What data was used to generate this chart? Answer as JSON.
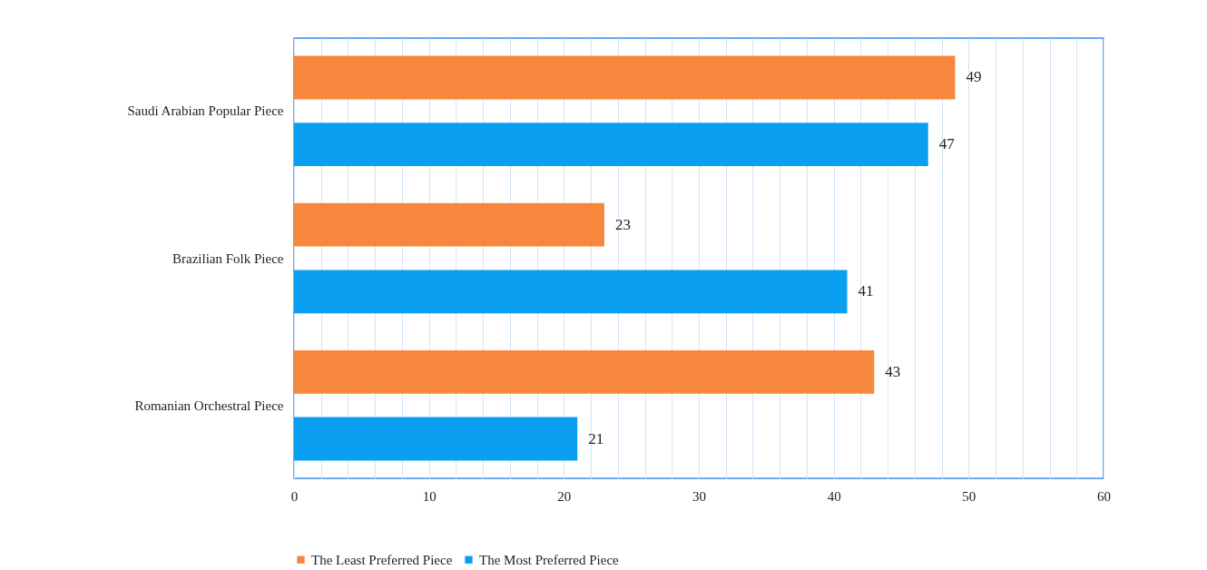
{
  "chart_data": {
    "type": "bar",
    "orientation": "horizontal",
    "categories": [
      "Saudi Arabian Popular Piece",
      "Brazilian Folk Piece",
      "Romanian Orchestral Piece"
    ],
    "series": [
      {
        "name": "The Least Preferred Piece",
        "color": "#f7873c",
        "values": [
          49,
          23,
          43
        ]
      },
      {
        "name": "The Most Preferred Piece",
        "color": "#0a9ef0",
        "values": [
          47,
          41,
          21
        ]
      }
    ],
    "xlim": [
      0,
      60
    ],
    "xticks": [
      0,
      {
        "value": 2,
        "label": null
      },
      {
        "value": 4,
        "label": null
      },
      {
        "value": 6,
        "label": null
      },
      {
        "value": 8,
        "label": null
      },
      10,
      {
        "value": 12,
        "label": null
      },
      {
        "value": 14,
        "label": null
      },
      {
        "value": 16,
        "label": null
      },
      {
        "value": 18,
        "label": null
      },
      20,
      {
        "value": 22,
        "label": null
      },
      {
        "value": 24,
        "label": null
      },
      {
        "value": 26,
        "label": null
      },
      {
        "value": 28,
        "label": null
      },
      30,
      {
        "value": 32,
        "label": null
      },
      {
        "value": 34,
        "label": null
      },
      {
        "value": 36,
        "label": null
      },
      {
        "value": 38,
        "label": null
      },
      40,
      {
        "value": 42,
        "label": null
      },
      {
        "value": 44,
        "label": null
      },
      {
        "value": 46,
        "label": null
      },
      {
        "value": 48,
        "label": null
      },
      50,
      {
        "value": 52,
        "label": null
      },
      {
        "value": 54,
        "label": null
      },
      {
        "value": 56,
        "label": null
      },
      {
        "value": 58,
        "label": null
      },
      60
    ],
    "grid": "x",
    "data_labels": true,
    "legend": "bottom"
  }
}
